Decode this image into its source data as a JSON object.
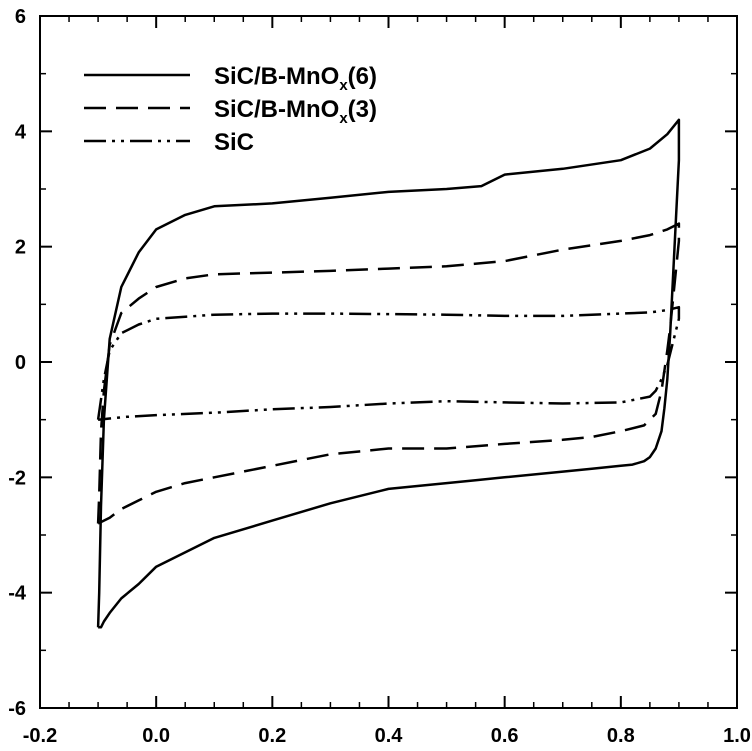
{
  "chart_data": {
    "type": "line",
    "title": "",
    "xlabel": "",
    "ylabel": "",
    "xlim": [
      -0.2,
      1.0
    ],
    "ylim": [
      -6,
      6
    ],
    "x_ticks": [
      "-0.2",
      "0.0",
      "0.2",
      "0.4",
      "0.6",
      "0.8",
      "1.0"
    ],
    "y_ticks": [
      "6",
      "4",
      "2",
      "0",
      "-2",
      "-4",
      "-6"
    ],
    "grid": false,
    "legend_position": "top-left",
    "series": [
      {
        "name": "SiC/B-MnOx(6)",
        "legend_main": "SiC/B-MnO",
        "legend_sub": "x",
        "legend_tail": "(6)",
        "dash": "solid",
        "x": [
          -0.1,
          -0.098,
          -0.095,
          -0.09,
          -0.08,
          -0.06,
          -0.03,
          0.0,
          0.05,
          0.1,
          0.2,
          0.3,
          0.4,
          0.5,
          0.56,
          0.6,
          0.7,
          0.8,
          0.85,
          0.88,
          0.9,
          0.9,
          0.895,
          0.89,
          0.885,
          0.88,
          0.875,
          0.87,
          0.86,
          0.85,
          0.84,
          0.82,
          0.8,
          0.75,
          0.7,
          0.6,
          0.55,
          0.5,
          0.45,
          0.4,
          0.3,
          0.2,
          0.1,
          0.0,
          -0.03,
          -0.06,
          -0.08,
          -0.09,
          -0.095,
          -0.1
        ],
        "y": [
          -4.6,
          -4.0,
          -2.5,
          -1.0,
          0.4,
          1.3,
          1.9,
          2.3,
          2.55,
          2.7,
          2.75,
          2.85,
          2.95,
          3.0,
          3.05,
          3.25,
          3.35,
          3.5,
          3.7,
          3.95,
          4.2,
          3.5,
          2.5,
          1.5,
          0.5,
          -0.3,
          -0.8,
          -1.2,
          -1.5,
          -1.65,
          -1.72,
          -1.78,
          -1.8,
          -1.85,
          -1.9,
          -2.0,
          -2.05,
          -2.1,
          -2.15,
          -2.2,
          -2.45,
          -2.75,
          -3.05,
          -3.55,
          -3.85,
          -4.1,
          -4.35,
          -4.5,
          -4.6,
          -4.6
        ]
      },
      {
        "name": "SiC/B-MnOx(3)",
        "legend_main": "SiC/B-MnO",
        "legend_sub": "x",
        "legend_tail": "(3)",
        "dash": "dashed",
        "x": [
          -0.1,
          -0.098,
          -0.095,
          -0.09,
          -0.08,
          -0.06,
          -0.03,
          0.0,
          0.05,
          0.1,
          0.2,
          0.3,
          0.4,
          0.5,
          0.6,
          0.7,
          0.8,
          0.85,
          0.88,
          0.9,
          0.9,
          0.895,
          0.89,
          0.885,
          0.88,
          0.87,
          0.86,
          0.84,
          0.8,
          0.75,
          0.7,
          0.6,
          0.5,
          0.4,
          0.3,
          0.2,
          0.1,
          0.05,
          0.0,
          -0.03,
          -0.06,
          -0.08,
          -0.09,
          -0.1
        ],
        "y": [
          -2.8,
          -2.3,
          -1.2,
          -0.5,
          0.3,
          0.85,
          1.1,
          1.3,
          1.45,
          1.52,
          1.55,
          1.58,
          1.62,
          1.66,
          1.75,
          1.95,
          2.1,
          2.2,
          2.3,
          2.4,
          2.1,
          1.6,
          1.1,
          0.6,
          0.2,
          -0.5,
          -0.9,
          -1.1,
          -1.2,
          -1.3,
          -1.35,
          -1.42,
          -1.5,
          -1.5,
          -1.6,
          -1.8,
          -2.0,
          -2.1,
          -2.25,
          -2.4,
          -2.55,
          -2.7,
          -2.75,
          -2.8
        ]
      },
      {
        "name": "SiC",
        "legend_main": "SiC",
        "legend_sub": "",
        "legend_tail": "",
        "dash": "dashdotdot",
        "x": [
          -0.1,
          -0.09,
          -0.08,
          -0.06,
          -0.03,
          0.0,
          0.1,
          0.2,
          0.3,
          0.4,
          0.5,
          0.6,
          0.7,
          0.8,
          0.85,
          0.88,
          0.9,
          0.9,
          0.895,
          0.89,
          0.885,
          0.88,
          0.87,
          0.86,
          0.85,
          0.8,
          0.7,
          0.6,
          0.5,
          0.4,
          0.3,
          0.2,
          0.1,
          0.0,
          -0.05,
          -0.08,
          -0.1
        ],
        "y": [
          -1.0,
          -0.3,
          0.2,
          0.5,
          0.65,
          0.75,
          0.82,
          0.84,
          0.84,
          0.83,
          0.82,
          0.8,
          0.8,
          0.84,
          0.86,
          0.9,
          0.95,
          0.75,
          0.55,
          0.35,
          0.15,
          -0.05,
          -0.3,
          -0.5,
          -0.6,
          -0.7,
          -0.72,
          -0.7,
          -0.68,
          -0.72,
          -0.78,
          -0.82,
          -0.88,
          -0.92,
          -0.95,
          -0.98,
          -1.0
        ]
      }
    ]
  }
}
